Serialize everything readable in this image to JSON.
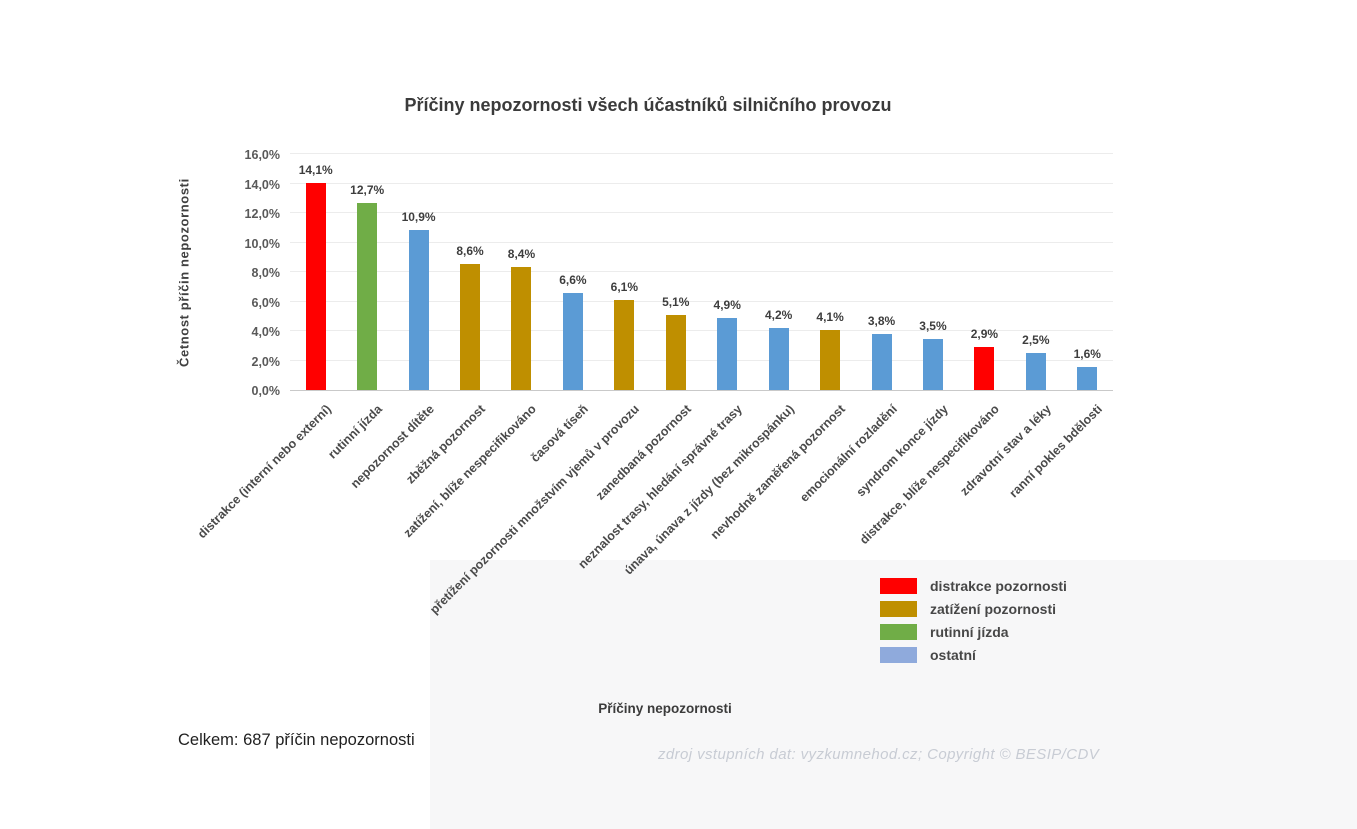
{
  "title": "Příčiny nepozornosti všech účastníků silničního provozu",
  "y_axis_label": "Četnost příčin nepozornosti",
  "x_axis_title": "Příčiny nepozornosti",
  "total_note": "Celkem: 687 příčin nepozornosti",
  "source_note": "zdroj vstupních dat: vyzkumnehod.cz; Copyright © BESIP/CDV",
  "colors": {
    "red": "#ff0000",
    "gold": "#bf8f00",
    "green": "#70ad47",
    "blue_bar": "#5b9bd5",
    "blue_legend": "#8faadc",
    "gridline": "#ececec",
    "panel": "#f7f7f8"
  },
  "legend": [
    {
      "label": "distrakce pozornosti",
      "color": "#ff0000"
    },
    {
      "label": "zatížení pozornosti",
      "color": "#bf8f00"
    },
    {
      "label": "rutinní jízda",
      "color": "#70ad47"
    },
    {
      "label": "ostatní",
      "color": "#8faadc"
    }
  ],
  "chart_data": {
    "type": "bar",
    "title": "Příčiny nepozornosti všech účastníků silničního provozu",
    "xlabel": "Příčiny nepozornosti",
    "ylabel": "Četnost příčin nepozornosti",
    "ylim": [
      0,
      16
    ],
    "grid": true,
    "legend_position": "bottom-right",
    "y_ticks": {
      "values": [
        0,
        2,
        4,
        6,
        8,
        10,
        12,
        14,
        16
      ],
      "labels": [
        "0,0%",
        "2,0%",
        "4,0%",
        "6,0%",
        "8,0%",
        "10,0%",
        "12,0%",
        "14,0%",
        "16,0%"
      ]
    },
    "group_colors": {
      "distrakce pozornosti": "#ff0000",
      "zatížení pozornosti": "#bf8f00",
      "rutinní jízda": "#70ad47",
      "ostatní": "#5b9bd5"
    },
    "bars": [
      {
        "category": "distrakce (interní nebo externí)",
        "value": 14.1,
        "label": "14,1%",
        "group": "distrakce pozornosti"
      },
      {
        "category": "rutinní jízda",
        "value": 12.7,
        "label": "12,7%",
        "group": "rutinní jízda"
      },
      {
        "category": "nepozornost dítěte",
        "value": 10.9,
        "label": "10,9%",
        "group": "ostatní"
      },
      {
        "category": "zběžná pozornost",
        "value": 8.6,
        "label": "8,6%",
        "group": "zatížení pozornosti"
      },
      {
        "category": "zatížení, blíže nespecifikováno",
        "value": 8.4,
        "label": "8,4%",
        "group": "zatížení pozornosti"
      },
      {
        "category": "časová tíseň",
        "value": 6.6,
        "label": "6,6%",
        "group": "ostatní"
      },
      {
        "category": "přetížení pozornosti množstvím vjemů v provozu",
        "value": 6.1,
        "label": "6,1%",
        "group": "zatížení pozornosti"
      },
      {
        "category": "zanedbaná pozornost",
        "value": 5.1,
        "label": "5,1%",
        "group": "zatížení pozornosti"
      },
      {
        "category": "neznalost trasy, hledání správné trasy",
        "value": 4.9,
        "label": "4,9%",
        "group": "ostatní"
      },
      {
        "category": "únava, únava z jízdy (bez mikrospánku)",
        "value": 4.2,
        "label": "4,2%",
        "group": "ostatní"
      },
      {
        "category": "nevhodně zaměřená pozornost",
        "value": 4.1,
        "label": "4,1%",
        "group": "zatížení pozornosti"
      },
      {
        "category": "emocionální rozladění",
        "value": 3.8,
        "label": "3,8%",
        "group": "ostatní"
      },
      {
        "category": "syndrom konce jízdy",
        "value": 3.5,
        "label": "3,5%",
        "group": "ostatní"
      },
      {
        "category": "distrakce, blíže nespecifikováno",
        "value": 2.9,
        "label": "2,9%",
        "group": "distrakce pozornosti"
      },
      {
        "category": "zdravotní stav a léky",
        "value": 2.5,
        "label": "2,5%",
        "group": "ostatní"
      },
      {
        "category": "ranní pokles bdělosti",
        "value": 1.6,
        "label": "1,6%",
        "group": "ostatní"
      }
    ]
  }
}
